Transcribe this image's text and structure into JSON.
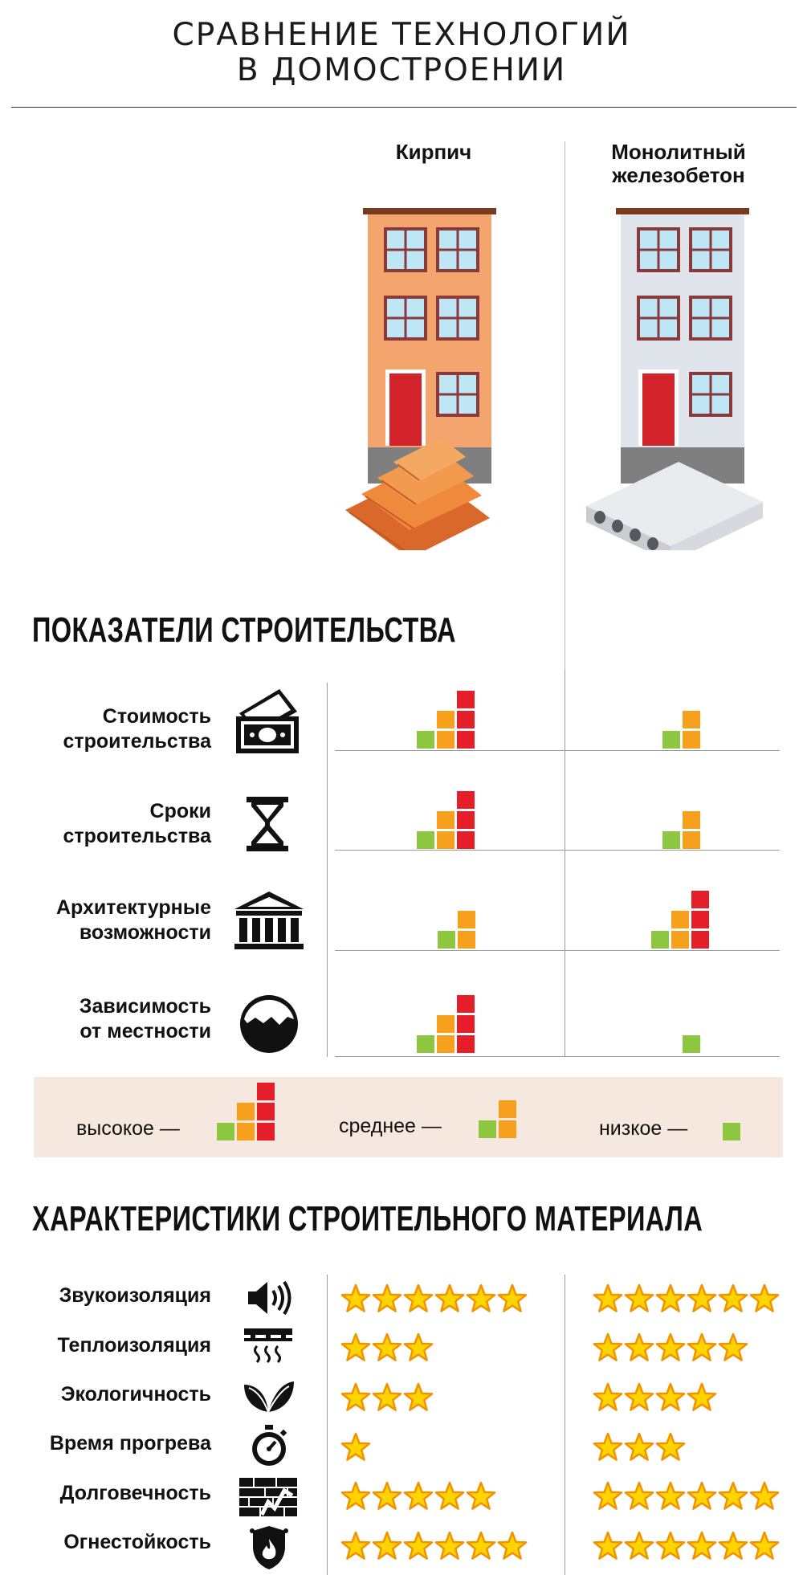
{
  "title": {
    "line1": "СРАВНЕНИЕ ТЕХНОЛОГИЙ",
    "line2": "В ДОМОСТРОЕНИИ"
  },
  "columns": {
    "brick": "Кирпич",
    "concrete_line1": "Монолитный",
    "concrete_line2": "железобетон"
  },
  "section_indicators": "ПОКАЗАТЕЛИ СТРОИТЕЛЬСТВА",
  "indicators": [
    {
      "label1": "Стоимость",
      "label2": "строительства",
      "icon": "money-icon",
      "brick": "высокое",
      "concrete": "среднее"
    },
    {
      "label1": "Сроки",
      "label2": "строительства",
      "icon": "hourglass-icon",
      "brick": "высокое",
      "concrete": "среднее"
    },
    {
      "label1": "Архитектурные",
      "label2": "возможности",
      "icon": "columns-building-icon",
      "brick": "среднее",
      "concrete": "высокое"
    },
    {
      "label1": "Зависимость",
      "label2": "от местности",
      "icon": "terrain-icon",
      "brick": "высокое",
      "concrete": "низкое"
    }
  ],
  "legend": {
    "high": "высокое —",
    "medium": "среднее —",
    "low": "низкое —"
  },
  "section_material": "ХАРАКТЕРИСТИКИ СТРОИТЕЛЬНОГО МАТЕРИАЛА",
  "characteristics": [
    {
      "label": "Звукоизоляция",
      "icon": "speaker-icon",
      "brick_stars": 6,
      "concrete_stars": 6
    },
    {
      "label": "Теплоизоляция",
      "icon": "heating-icon",
      "brick_stars": 3,
      "concrete_stars": 5
    },
    {
      "label": "Экологичность",
      "icon": "leaf-icon",
      "brick_stars": 3,
      "concrete_stars": 4
    },
    {
      "label": "Время прогрева",
      "icon": "stopwatch-icon",
      "brick_stars": 1,
      "concrete_stars": 3
    },
    {
      "label": "Долговечность",
      "icon": "cracked-wall-icon",
      "brick_stars": 5,
      "concrete_stars": 6
    },
    {
      "label": "Огнестойкость",
      "icon": "fire-shield-icon",
      "brick_stars": 6,
      "concrete_stars": 6
    }
  ],
  "colors": {
    "low": "#8dc63f",
    "medium": "#f7a01d",
    "high": "#e51e2a",
    "star_fill": "#ffd400",
    "star_stroke": "#f39200",
    "brick_facade": "#f4a46d",
    "concrete_facade": "#e0e5ec"
  }
}
